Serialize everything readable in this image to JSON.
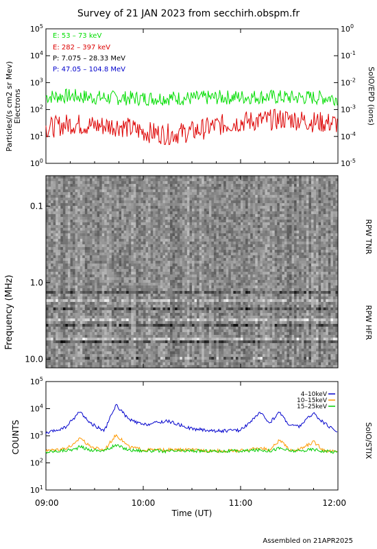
{
  "title": "Survey of 21 JAN 2023 from secchirh.obspm.fr",
  "footer": "Assembled on 21APR2025",
  "x_axis": {
    "label": "Time (UT)",
    "ticks": [
      "09:00",
      "10:00",
      "11:00",
      "12:00"
    ],
    "tick_hours": [
      9,
      10,
      11,
      12
    ],
    "range_hours": [
      9,
      12
    ]
  },
  "chart_data": [
    {
      "type": "line",
      "panel": "SolO/EPD",
      "left_axis_label_line1": "Particles/(s cm2 sr Mev)",
      "left_axis_label_line2": "Electrons",
      "right_axis_label": "SolO/EPD (ions)",
      "y_scale": "log",
      "ylim": [
        1,
        100000
      ],
      "y_ticks": [
        "10^0",
        "10^1",
        "10^2",
        "10^3",
        "10^4",
        "10^5"
      ],
      "y_ticks_right": [
        "10^-5",
        "10^-4",
        "10^-3",
        "10^-2",
        "10^-1",
        "10^0"
      ],
      "legend_placement": "top-left",
      "legend": [
        {
          "label": "E: 53 – 73 keV",
          "color": "#00dd00"
        },
        {
          "label": "E: 282 – 397 keV",
          "color": "#dd0000"
        },
        {
          "label": "P: 7.075 – 28.33 MeV",
          "color": "#000000"
        },
        {
          "label": "P: 47.05 – 104.8 MeV",
          "color": "#0000cc"
        }
      ],
      "series": [
        {
          "name": "E: 53 – 73 keV",
          "color": "#00dd00",
          "x": [
            9.0,
            9.25,
            9.5,
            9.75,
            10.0,
            10.25,
            10.5,
            10.75,
            11.0,
            11.25,
            11.5,
            11.75,
            12.0
          ],
          "y": [
            300,
            320,
            280,
            270,
            260,
            270,
            260,
            280,
            290,
            300,
            280,
            280,
            270
          ]
        },
        {
          "name": "E: 282 – 397 keV",
          "color": "#dd0000",
          "x": [
            9.0,
            9.25,
            9.5,
            9.75,
            10.0,
            10.25,
            10.5,
            10.75,
            11.0,
            11.25,
            11.5,
            11.75,
            12.0
          ],
          "y": [
            20,
            30,
            25,
            25,
            15,
            12,
            15,
            25,
            35,
            40,
            45,
            35,
            30
          ]
        }
      ]
    },
    {
      "type": "heatmap",
      "panel": "RPW",
      "y_axis_label": "Frequency (MHz)",
      "y_scale": "log",
      "ylim": [
        0.04,
        13
      ],
      "y_ticks": [
        "0.1",
        "1.0",
        "10.0"
      ],
      "tnr_label": "RPW TNR",
      "hfr_label": "RPW HFR",
      "colormap": "grayscale"
    },
    {
      "type": "line",
      "panel": "SolO/STIX",
      "y_axis_label": "COUNTS",
      "right_axis_label": "SolO/STIX",
      "y_scale": "log",
      "ylim": [
        10,
        100000
      ],
      "y_ticks": [
        "10^1",
        "10^2",
        "10^3",
        "10^4",
        "10^5"
      ],
      "legend_placement": "top-right",
      "series": [
        {
          "name": "4–10keV",
          "color": "#0000cc",
          "x": [
            9.0,
            9.2,
            9.3,
            9.35,
            9.45,
            9.6,
            9.72,
            9.85,
            10.0,
            10.25,
            10.5,
            10.75,
            11.0,
            11.2,
            11.3,
            11.4,
            11.5,
            11.6,
            11.75,
            11.85,
            12.0
          ],
          "y": [
            1200,
            2000,
            5000,
            8000,
            3000,
            1500,
            14000,
            4000,
            2500,
            3500,
            1800,
            1500,
            1600,
            7000,
            3000,
            7500,
            2500,
            2200,
            7000,
            3000,
            1400
          ]
        },
        {
          "name": "10–15keV",
          "color": "#ff9900",
          "x": [
            9.0,
            9.2,
            9.3,
            9.35,
            9.45,
            9.6,
            9.72,
            9.85,
            10.0,
            10.25,
            10.5,
            10.75,
            11.0,
            11.2,
            11.3,
            11.4,
            11.5,
            11.6,
            11.75,
            11.85,
            12.0
          ],
          "y": [
            280,
            350,
            500,
            900,
            400,
            300,
            1100,
            400,
            300,
            300,
            300,
            280,
            280,
            350,
            300,
            700,
            300,
            300,
            600,
            300,
            250
          ]
        },
        {
          "name": "15–25keV",
          "color": "#00cc00",
          "x": [
            9.0,
            9.2,
            9.3,
            9.35,
            9.45,
            9.6,
            9.72,
            9.85,
            10.0,
            10.25,
            10.5,
            10.75,
            11.0,
            11.2,
            11.3,
            11.4,
            11.5,
            11.6,
            11.75,
            11.85,
            12.0
          ],
          "y": [
            250,
            290,
            320,
            400,
            300,
            280,
            450,
            300,
            280,
            270,
            280,
            270,
            270,
            300,
            280,
            350,
            280,
            270,
            320,
            270,
            250
          ]
        }
      ]
    }
  ]
}
